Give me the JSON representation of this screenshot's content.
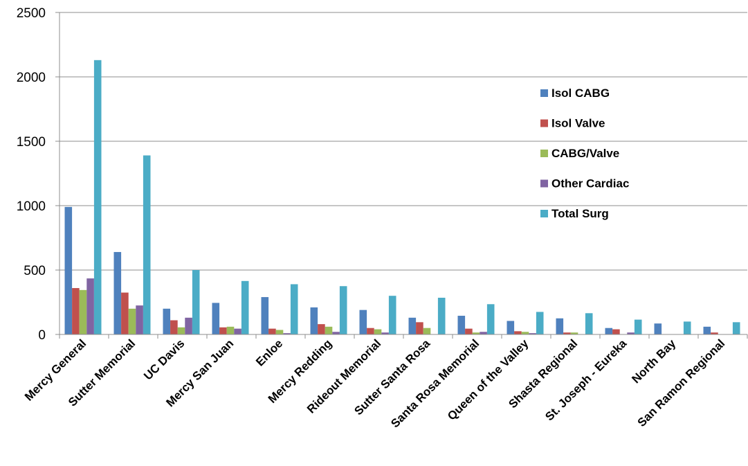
{
  "chart_data": {
    "type": "bar",
    "title": "",
    "xlabel": "",
    "ylabel": "",
    "ylim": [
      0,
      2500
    ],
    "yticks": [
      0,
      500,
      1000,
      1500,
      2000,
      2500
    ],
    "grid": true,
    "legend_position": "right",
    "categories": [
      "Mercy General",
      "Sutter Memorial",
      "UC Davis",
      "Mercy San Juan",
      "Enloe",
      "Mercy Redding",
      "Rideout Memorial",
      "Sutter Santa Rosa",
      "Santa Rosa Memorial",
      "Queen of the Valley",
      "Shasta Regional",
      "St. Joseph - Eureka",
      "North Bay",
      "San Ramon Regional"
    ],
    "series": [
      {
        "name": "Isol CABG",
        "color": "#4F81BD",
        "values": [
          990,
          640,
          200,
          245,
          290,
          210,
          190,
          130,
          145,
          105,
          125,
          50,
          85,
          60
        ]
      },
      {
        "name": "Isol Valve",
        "color": "#C0504D",
        "values": [
          360,
          325,
          110,
          55,
          45,
          80,
          50,
          95,
          45,
          25,
          15,
          40,
          0,
          15
        ]
      },
      {
        "name": "CABG/Valve",
        "color": "#9BBB59",
        "values": [
          345,
          200,
          55,
          60,
          35,
          60,
          40,
          50,
          15,
          20,
          15,
          0,
          0,
          0
        ]
      },
      {
        "name": "Other Cardiac",
        "color": "#8064A2",
        "values": [
          435,
          225,
          130,
          45,
          10,
          20,
          15,
          0,
          20,
          10,
          0,
          15,
          0,
          0
        ]
      },
      {
        "name": "Total Surg",
        "color": "#4BACC6",
        "values": [
          2130,
          1390,
          500,
          415,
          390,
          375,
          300,
          285,
          235,
          175,
          165,
          115,
          100,
          95
        ]
      }
    ]
  }
}
